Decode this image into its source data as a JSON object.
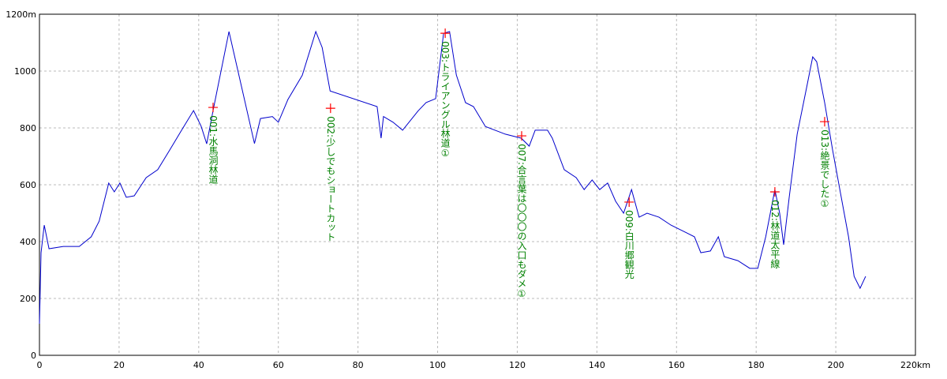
{
  "chart_data": {
    "type": "line",
    "xlim": [
      0,
      220
    ],
    "ylim": [
      0,
      1200
    ],
    "xticks": [
      0,
      20,
      40,
      60,
      80,
      100,
      120,
      140,
      160,
      180,
      200,
      {
        "value": 220,
        "label": "220km"
      }
    ],
    "yticks": [
      0,
      200,
      400,
      600,
      800,
      1000,
      {
        "value": 1200,
        "label": "1200m"
      }
    ],
    "grid": true,
    "color": "#0000cc",
    "marker_color": "#ff0000",
    "label_color": "#008000",
    "x": [
      0,
      0.4,
      1.2,
      2.4,
      6,
      10,
      13,
      15,
      17.4,
      18.8,
      20.2,
      21.8,
      23.8,
      26.8,
      29.7,
      32.7,
      35.7,
      38.7,
      40.6,
      42,
      43.6,
      47.6,
      54,
      55.5,
      58.5,
      60,
      62.4,
      66,
      69.4,
      71,
      73,
      84.8,
      85.8,
      86.4,
      88.8,
      91.2,
      95.1,
      97.1,
      99.5,
      101.5,
      103,
      104.7,
      107,
      109,
      112,
      117,
      121,
      123,
      124.5,
      127.6,
      128.8,
      131.8,
      134.8,
      136.8,
      138.8,
      140.7,
      142.7,
      144.7,
      146.7,
      148.7,
      150.6,
      152.6,
      155.6,
      158.6,
      162.5,
      164.5,
      166.1,
      168.5,
      170.5,
      172,
      175.4,
      178.4,
      180.4,
      182.4,
      184.7,
      185.9,
      186.9,
      188.3,
      190.3,
      192.7,
      194.2,
      195.2,
      197.2,
      199.2,
      201.2,
      203.2,
      204.6,
      206.1,
      207.5
    ],
    "values": [
      111,
      361,
      458,
      375,
      383,
      383,
      417,
      472,
      606,
      575,
      606,
      556,
      561,
      625,
      653,
      722,
      792,
      861,
      806,
      744,
      861,
      1139,
      745,
      833,
      840,
      820,
      900,
      985,
      1139,
      1083,
      930,
      875,
      764,
      840,
      820,
      792,
      860,
      889,
      903,
      1133,
      1139,
      986,
      889,
      875,
      805,
      778,
      764,
      736,
      792,
      792,
      764,
      653,
      625,
      583,
      617,
      583,
      606,
      542,
      500,
      583,
      486,
      500,
      486,
      458,
      431,
      417,
      361,
      367,
      417,
      347,
      333,
      306,
      306,
      417,
      583,
      500,
      389,
      556,
      778,
      944,
      1050,
      1033,
      889,
      722,
      569,
      417,
      278,
      236,
      278
    ],
    "waypoints": [
      {
        "label": "001:水馬洞林道",
        "x": 43.6,
        "value": 872
      },
      {
        "label": "002:少しでもショートカット",
        "x": 73.1,
        "value": 869
      },
      {
        "label": "003:トライアングル林道①",
        "x": 101.9,
        "value": 1133
      },
      {
        "label": "007:合言葉は〇〇〇の入口もダメ①",
        "x": 121.1,
        "value": 772
      },
      {
        "label": "009:白川郷観光",
        "x": 148.1,
        "value": 539
      },
      {
        "label": "012:林道太平線",
        "x": 184.7,
        "value": 575
      },
      {
        "label": "013:絶景でした①",
        "x": 197.2,
        "value": 822
      }
    ]
  }
}
